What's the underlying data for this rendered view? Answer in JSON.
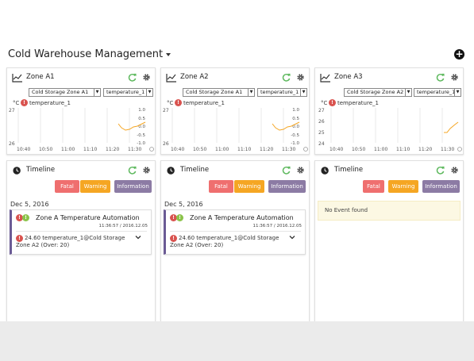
{
  "app": {
    "title": "Cold Warehouse Management",
    "add_icon": "plus-circle-icon"
  },
  "zones": [
    {
      "title": "Zone A1",
      "zone_select": "Cold Storage Zone A1",
      "sensor_select": "temperature_1",
      "unit": "°C",
      "sensor": "temperature_1",
      "left_ticks": [
        "27",
        "26"
      ],
      "right_ticks": [
        "1.0",
        "0.5",
        "0.0",
        "-0.5",
        "-1.0"
      ],
      "x_ticks": [
        "10:40",
        "10:50",
        "11:00",
        "11:10",
        "11:20",
        "11:30"
      ]
    },
    {
      "title": "Zone A2",
      "zone_select": "Cold Storage Zone A1",
      "sensor_select": "temperature_1",
      "unit": "°C",
      "sensor": "temperature_1",
      "left_ticks": [
        "27",
        "26"
      ],
      "right_ticks": [
        "1.0",
        "0.5",
        "0.0",
        "-0.5",
        "-1.0"
      ],
      "x_ticks": [
        "10:40",
        "10:50",
        "11:00",
        "11:10",
        "11:20",
        "11:30"
      ]
    },
    {
      "title": "Zone A3",
      "zone_select": "Cold Storage Zone A2",
      "sensor_select": "temperature_1",
      "unit": "°C",
      "sensor": "temperature_1",
      "left_ticks": [
        "27",
        "26",
        "25",
        "24"
      ],
      "right_ticks": [],
      "x_ticks": [
        "10:40",
        "10:50",
        "11:00",
        "11:10",
        "11:20",
        "11:30"
      ]
    }
  ],
  "timelines": [
    {
      "title": "Timeline",
      "fatal": "Fatal",
      "warning": "Warning",
      "information": "Information",
      "date": "Dec 5, 2016",
      "event": {
        "title": "Zone A Temperature Automation",
        "time": "11:36:57 / 2016.12.05",
        "desc": "24.60 temperature_1@Cold Storage Zone A2 (Over: 20)"
      }
    },
    {
      "title": "Timeline",
      "fatal": "Fatal",
      "warning": "Warning",
      "information": "Information",
      "date": "Dec 5, 2016",
      "event": {
        "title": "Zone A Temperature Automation",
        "time": "11:36:57 / 2016.12.05",
        "desc": "24.60 temperature_1@Cold Storage Zone A2 (Over: 20)"
      }
    },
    {
      "title": "Timeline",
      "fatal": "Fatal",
      "warning": "Warning",
      "information": "Information",
      "no_event": "No Event found"
    }
  ],
  "colors": {
    "accent_green": "#5cb85c",
    "fatal": "#ef6f6f",
    "warning": "#f5a623",
    "information": "#8c7ba4",
    "line": "#f5a623"
  }
}
